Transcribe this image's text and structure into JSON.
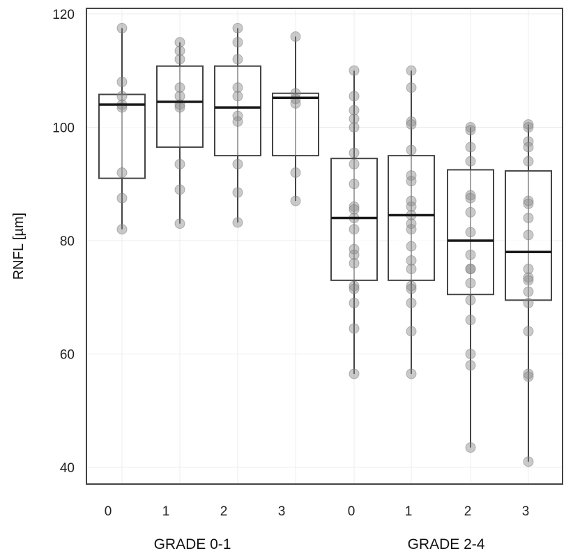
{
  "chart_data": {
    "type": "box",
    "ylabel": "RNFL [µm]",
    "ylim": [
      40,
      120
    ],
    "y_ticks": [
      40,
      60,
      80,
      100,
      120
    ],
    "grid": true,
    "groups": [
      {
        "label": "GRADE 0-1",
        "categories": [
          "0",
          "1",
          "2",
          "3"
        ]
      },
      {
        "label": "GRADE 2-4",
        "categories": [
          "0",
          "1",
          "2",
          "3"
        ]
      }
    ],
    "boxes": [
      {
        "group": "GRADE 0-1",
        "category": "0",
        "whisker_min": 82,
        "q1": 91,
        "median": 104,
        "q3": 105.8,
        "whisker_max": 117.5,
        "points": [
          117.5,
          108,
          105.5,
          104,
          103.5,
          92,
          87.5,
          82
        ]
      },
      {
        "group": "GRADE 0-1",
        "category": "1",
        "whisker_min": 83,
        "q1": 96.5,
        "median": 104.5,
        "q3": 110.8,
        "whisker_max": 115,
        "points": [
          115,
          113.5,
          112,
          107,
          105.5,
          104,
          103.5,
          93.5,
          89,
          83
        ]
      },
      {
        "group": "GRADE 0-1",
        "category": "2",
        "whisker_min": 83.2,
        "q1": 95,
        "median": 103.5,
        "q3": 110.8,
        "whisker_max": 117.5,
        "points": [
          117.5,
          115,
          112,
          107,
          105.5,
          102,
          101,
          93.5,
          88.5,
          83.2
        ]
      },
      {
        "group": "GRADE 0-1",
        "category": "3",
        "whisker_min": 87,
        "q1": 95,
        "median": 105.2,
        "q3": 106,
        "whisker_max": 116,
        "points": [
          116,
          106,
          105,
          104.2,
          92,
          87
        ]
      },
      {
        "group": "GRADE 2-4",
        "category": "0",
        "whisker_min": 56.5,
        "q1": 73,
        "median": 84,
        "q3": 94.5,
        "whisker_max": 110,
        "points": [
          110,
          105.5,
          103,
          101.5,
          100,
          95.5,
          93.5,
          90,
          86,
          85.5,
          84,
          82,
          78.5,
          77.5,
          76,
          72,
          71.5,
          69,
          64.5,
          56.5
        ]
      },
      {
        "group": "GRADE 2-4",
        "category": "1",
        "whisker_min": 56.5,
        "q1": 73,
        "median": 84.5,
        "q3": 95,
        "whisker_max": 110,
        "points": [
          110,
          107,
          101,
          100.5,
          96,
          91.5,
          90.5,
          87,
          86,
          84.5,
          83,
          82,
          79,
          76.5,
          75,
          72,
          71.5,
          69,
          64,
          56.5
        ]
      },
      {
        "group": "GRADE 2-4",
        "category": "2",
        "whisker_min": 43.5,
        "q1": 70.5,
        "median": 80,
        "q3": 92.5,
        "whisker_max": 100,
        "points": [
          100,
          99.5,
          96.5,
          94,
          88,
          87.5,
          85,
          81.5,
          77.5,
          75,
          75,
          72.5,
          69.5,
          66,
          60,
          58,
          43.5
        ]
      },
      {
        "group": "GRADE 2-4",
        "category": "3",
        "whisker_min": 41,
        "q1": 69.5,
        "median": 78,
        "q3": 92.3,
        "whisker_max": 100.5,
        "points": [
          100.5,
          100,
          97.5,
          96.5,
          94,
          87,
          86.5,
          84,
          81,
          75,
          73.5,
          73,
          71,
          69,
          64,
          56.5,
          56,
          41
        ]
      }
    ]
  }
}
